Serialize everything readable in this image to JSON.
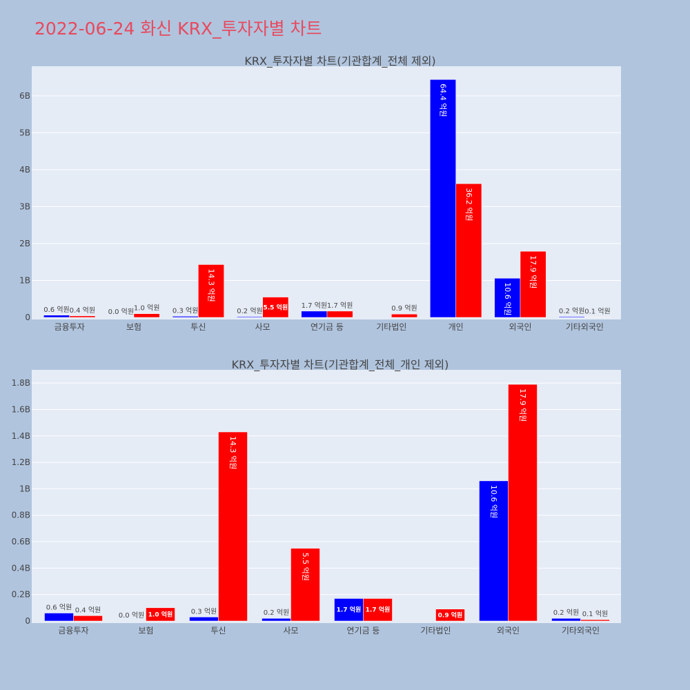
{
  "page_title": "2022-06-24 화신 KRX_투자자별 차트",
  "colors": {
    "buy": "#0000ff",
    "sell": "#ff0000",
    "page_bg": "#b0c4de",
    "plot_bg": "#e5ecf6",
    "title": "#e8495d"
  },
  "chart_data": [
    {
      "type": "bar",
      "title": "KRX_투자자별 차트(기관합계_전체 제외)",
      "categories": [
        "금융투자",
        "보험",
        "투신",
        "사모",
        "연기금 등",
        "기타법인",
        "개인",
        "외국인",
        "기타외국인"
      ],
      "series": [
        {
          "values": [
            0.06,
            0.0,
            0.03,
            0.02,
            0.17,
            null,
            6.44,
            1.06,
            0.02
          ],
          "labels": [
            "0.6 억원",
            "0.0 억원",
            "0.3 억원",
            "0.2 억원",
            "1.7 억원",
            null,
            "64.4 억원",
            "10.6 억원",
            "0.2 억원"
          ]
        },
        {
          "values": [
            0.04,
            0.1,
            1.43,
            0.55,
            0.17,
            0.09,
            3.62,
            1.79,
            0.01
          ],
          "labels": [
            "0.4 억원",
            "1.0 억원",
            "14.3 억원",
            "5.5 억원",
            "1.7 억원",
            "0.9 억원",
            "36.2 억원",
            "17.9 억원",
            "0.1 억원"
          ]
        }
      ],
      "yticks": [
        "0",
        "1B",
        "2B",
        "3B",
        "4B",
        "5B",
        "6B"
      ],
      "ylim": [
        0,
        6.8
      ],
      "grid": true
    },
    {
      "type": "bar",
      "title": "KRX_투자자별 차트(기관합계_전체_개인 제외)",
      "categories": [
        "금융투자",
        "보험",
        "투신",
        "사모",
        "연기금 등",
        "기타법인",
        "외국인",
        "기타외국인"
      ],
      "series": [
        {
          "values": [
            0.06,
            0.0,
            0.03,
            0.02,
            0.17,
            null,
            1.06,
            0.02
          ],
          "labels": [
            "0.6 억원",
            "0.0 억원",
            "0.3 억원",
            "0.2 억원",
            "1.7 억원",
            null,
            "10.6 억원",
            "0.2 억원"
          ]
        },
        {
          "values": [
            0.04,
            0.1,
            1.43,
            0.55,
            0.17,
            0.09,
            1.79,
            0.01
          ],
          "labels": [
            "0.4 억원",
            "1.0 억원",
            "14.3 억원",
            "5.5 억원",
            "1.7 억원",
            "0.9 억원",
            "17.9 억원",
            "0.1 억원"
          ]
        }
      ],
      "yticks": [
        "0",
        "0.2B",
        "0.4B",
        "0.6B",
        "0.8B",
        "1B",
        "1.2B",
        "1.4B",
        "1.6B",
        "1.8B"
      ],
      "ylim": [
        0,
        1.9
      ],
      "grid": true
    }
  ]
}
